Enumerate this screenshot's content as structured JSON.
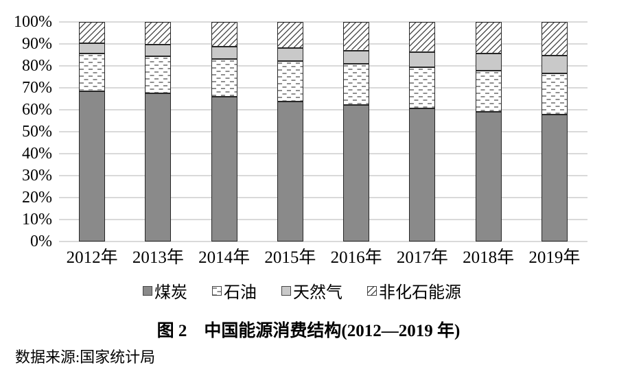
{
  "figure": {
    "caption": "图 2　中国能源消费结构(2012—2019 年)",
    "source_label": "数据来源:国家统计局"
  },
  "chart_data": {
    "type": "bar",
    "subtype": "stacked-100-percent-column",
    "title": "中国能源消费结构(2012—2019 年)",
    "categories": [
      "2012年",
      "2013年",
      "2014年",
      "2015年",
      "2016年",
      "2017年",
      "2018年",
      "2019年"
    ],
    "series": [
      {
        "key": "coal",
        "label": "煤炭",
        "fill": "solid-dark-gray",
        "color": "#8a8a8a",
        "values": [
          68.5,
          67.4,
          65.8,
          63.8,
          62.2,
          60.6,
          59.0,
          57.7
        ]
      },
      {
        "key": "oil",
        "label": "石油",
        "fill": "dash-pattern",
        "color": "#ffffff",
        "values": [
          17.0,
          17.1,
          17.3,
          18.4,
          18.7,
          18.9,
          18.9,
          18.9
        ]
      },
      {
        "key": "gas",
        "label": "天然气",
        "fill": "solid-light-gray",
        "color": "#c9c9c9",
        "values": [
          4.8,
          5.3,
          5.6,
          5.8,
          6.1,
          6.9,
          7.6,
          8.1
        ]
      },
      {
        "key": "nonfossil",
        "label": "非化石能源",
        "fill": "diagonal-hatch",
        "color": "#ffffff",
        "values": [
          9.7,
          10.2,
          11.3,
          12.0,
          13.0,
          13.6,
          14.5,
          15.3
        ]
      }
    ],
    "yticks": [
      "0%",
      "10%",
      "20%",
      "30%",
      "40%",
      "50%",
      "60%",
      "70%",
      "80%",
      "90%",
      "100%"
    ],
    "ylim": [
      0,
      100
    ],
    "grid": true,
    "legend": [
      "煤炭",
      "石油",
      "天然气",
      "非化石能源"
    ],
    "legend_position": "bottom",
    "units": "percent"
  },
  "colors": {
    "coal_fill": "#8a8a8a",
    "gas_fill": "#c9c9c9",
    "oil_dash": "#8f8f8f",
    "hatch_line": "#3d3d3d",
    "gridline": "#d9d9d9",
    "bar_border": "#262626",
    "text": "#000000",
    "background": "#ffffff"
  }
}
